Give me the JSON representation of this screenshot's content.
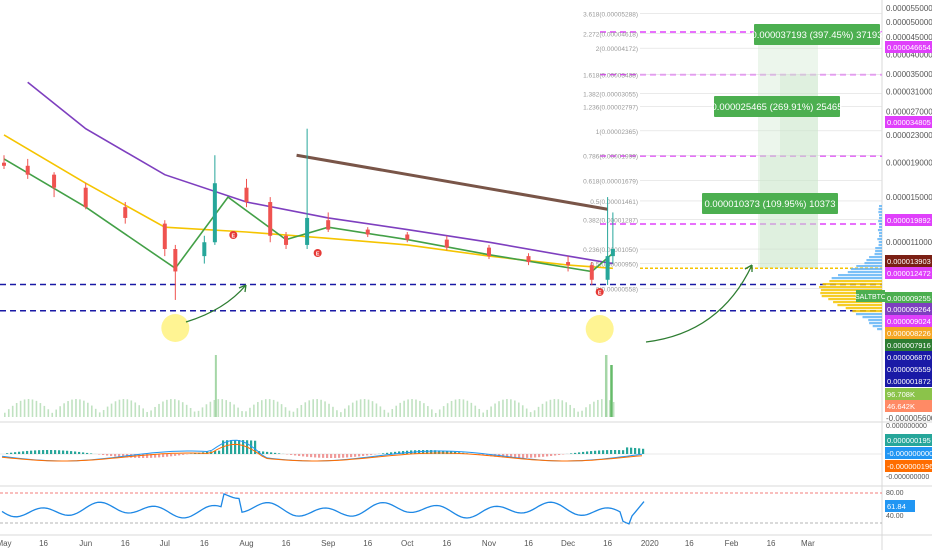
{
  "chart_data": [
    {
      "type": "candlestick",
      "symbol": "SALTBTC",
      "x_axis": {
        "tick_labels": [
          "May",
          "16",
          "Jun",
          "16",
          "Jul",
          "16",
          "Aug",
          "16",
          "Sep",
          "16",
          "Oct",
          "16",
          "Nov",
          "16",
          "Dec",
          "16",
          "2020",
          "16",
          "Feb",
          "16",
          "Mar"
        ],
        "range": [
          "2019-05-01",
          "2020-03-20"
        ]
      },
      "y_axis": {
        "scale": "log",
        "tick_labels": [
          "0.000055000",
          "0.000050000",
          "0.000045000",
          "0.000040000",
          "0.000035000",
          "0.000031000",
          "0.000027000",
          "0.000023000",
          "0.000019000",
          "0.000015000",
          "0.000011000",
          "0.000007000",
          "0.000003000",
          "-0.000005600"
        ]
      },
      "price_ohlc": [
        [
          "2019-05-01",
          1.9e-05,
          2e-05,
          1.82e-05,
          1.86e-05
        ],
        [
          "2019-05-10",
          1.86e-05,
          1.95e-05,
          1.7e-05,
          1.75e-05
        ],
        [
          "2019-05-20",
          1.75e-05,
          1.78e-05,
          1.5e-05,
          1.6e-05
        ],
        [
          "2019-06-01",
          1.6e-05,
          1.65e-05,
          1.38e-05,
          1.4e-05
        ],
        [
          "2019-06-16",
          1.4e-05,
          1.45e-05,
          1.25e-05,
          1.3e-05
        ],
        [
          "2019-07-01",
          1.25e-05,
          1.28e-05,
          1e-05,
          1.05e-05
        ],
        [
          "2019-07-05",
          1.05e-05,
          1.08e-05,
          7.4e-06,
          9e-06
        ],
        [
          "2019-07-16",
          1e-05,
          1.15e-05,
          9.5e-06,
          1.1e-05
        ],
        [
          "2019-07-20",
          1.1e-05,
          2e-05,
          1.08e-05,
          1.65e-05
        ],
        [
          "2019-08-01",
          1.6e-05,
          1.7e-05,
          1.4e-05,
          1.45e-05
        ],
        [
          "2019-08-10",
          1.45e-05,
          1.5e-05,
          1.1e-05,
          1.15e-05
        ],
        [
          "2019-08-16",
          1.15e-05,
          1.18e-05,
          1.05e-05,
          1.08e-05
        ],
        [
          "2019-08-24",
          1.08e-05,
          2.4e-05,
          1.05e-05,
          1.3e-05
        ],
        [
          "2019-09-01",
          1.28e-05,
          1.35e-05,
          1.18e-05,
          1.2e-05
        ],
        [
          "2019-09-16",
          1.2e-05,
          1.22e-05,
          1.14e-05,
          1.16e-05
        ],
        [
          "2019-10-01",
          1.16e-05,
          1.18e-05,
          1.1e-05,
          1.12e-05
        ],
        [
          "2019-10-16",
          1.12e-05,
          1.15e-05,
          1.04e-05,
          1.06e-05
        ],
        [
          "2019-11-01",
          1.06e-05,
          1.08e-05,
          9.8e-06,
          1e-05
        ],
        [
          "2019-11-16",
          1e-05,
          1.02e-05,
          9.4e-06,
          9.6e-06
        ],
        [
          "2019-12-01",
          9.6e-06,
          1e-05,
          9e-06,
          9.4e-06
        ],
        [
          "2019-12-10",
          9.4e-06,
          9.6e-06,
          8.2e-06,
          8.5e-06
        ],
        [
          "2019-12-16",
          8.5e-06,
          1.5e-05,
          8.2e-06,
          1e-05
        ],
        [
          "2019-12-18",
          1e-05,
          1.35e-05,
          9.5e-06,
          1.05e-05
        ]
      ],
      "price_tags": [
        {
          "text": "0.000046654",
          "color": "#e040fb"
        },
        {
          "text": "0.000034805",
          "color": "#e040fb"
        },
        {
          "text": "0.000019892",
          "color": "#e040fb"
        },
        {
          "text": "0.000013903",
          "color": "#7a1f14"
        },
        {
          "text": "0.000012472",
          "color": "#e040fb"
        },
        {
          "text": "SALTBTC",
          "color": "#4caf50"
        },
        {
          "text": "0.000009255",
          "color": "#4caf50"
        },
        {
          "text": "0.000009264",
          "color": "#7e3fbf"
        },
        {
          "text": "0.000009024",
          "color": "#e040fb"
        },
        {
          "text": "0.000008226",
          "color": "#f5a623"
        },
        {
          "text": "0.000007916",
          "color": "#2e7d32"
        },
        {
          "text": "0.000006870",
          "color": "#1a1aa6"
        },
        {
          "text": "0.000005559",
          "color": "#1a1aa6"
        },
        {
          "text": "0.000001872",
          "color": "#1a1aa6"
        },
        {
          "text": "96.708K",
          "color": "#8bc34a"
        },
        {
          "text": "46.642K",
          "color": "#ff8a65"
        }
      ],
      "target_labels": [
        {
          "text": "0.000037193 (397.45%) 37193"
        },
        {
          "text": "0.000025465 (269.91%) 25465"
        },
        {
          "text": "0.000010373 (109.95%) 10373"
        }
      ],
      "fib_labels": [
        "3.618(0.00005288)",
        "2.272(0.00004618)",
        "2(0.00004172)",
        "1.618(0.00003488)",
        "1.382(0.00003055)",
        "1.236(0.00002797)",
        "1(0.00002365)",
        "0.786(0.00001999)",
        "0.618(0.00001679)",
        "0.5(0.00001461)",
        "0.382(0.00001287)",
        "0.236(0.00001050)",
        "0.5(0.00000950)",
        "0(0.00000558)"
      ],
      "horizontal_levels": [
        {
          "value": 4.6654e-05,
          "color": "#e040fb",
          "style": "dashed"
        },
        {
          "value": 3.4805e-05,
          "color": "#e040fb",
          "style": "dashed"
        },
        {
          "value": 1.9892e-05,
          "color": "#e040fb",
          "style": "dashed"
        },
        {
          "value": 1.2472e-05,
          "color": "#e040fb",
          "style": "dashed"
        },
        {
          "value": 8.226e-06,
          "color": "#1a1aa6",
          "style": "dashed"
        },
        {
          "value": 6.87e-06,
          "color": "#1a1aa6",
          "style": "dashed"
        }
      ],
      "trendline": {
        "from": [
          "2019-08-20",
          2e-05
        ],
        "to": [
          "2019-12-16",
          1.38e-05
        ],
        "color": "#795548"
      },
      "moving_averages": [
        {
          "color": "#7e3fbf",
          "values": [
            [
              "2019-05-10",
              3.3e-05
            ],
            [
              "2019-06-01",
              2.4e-05
            ],
            [
              "2019-07-01",
              1.75e-05
            ],
            [
              "2019-08-01",
              1.45e-05
            ],
            [
              "2019-09-01",
              1.3e-05
            ],
            [
              "2019-10-01",
              1.2e-05
            ],
            [
              "2019-11-01",
              1.1e-05
            ],
            [
              "2019-12-01",
              1e-05
            ],
            [
              "2019-12-18",
              9.5e-06
            ]
          ]
        },
        {
          "color": "#f5c400",
          "values": [
            [
              "2019-05-01",
              2.3e-05
            ],
            [
              "2019-06-01",
              1.65e-05
            ],
            [
              "2019-07-01",
              1.22e-05
            ],
            [
              "2019-08-01",
              1.18e-05
            ],
            [
              "2019-09-01",
              1.13e-05
            ],
            [
              "2019-10-01",
              1.08e-05
            ],
            [
              "2019-11-01",
              1e-05
            ],
            [
              "2019-12-01",
              9.4e-06
            ],
            [
              "2019-12-18",
              9.2e-06
            ]
          ]
        },
        {
          "color": "#43a047",
          "values": [
            [
              "2019-05-01",
              1.95e-05
            ],
            [
              "2019-06-01",
              1.4e-05
            ],
            [
              "2019-07-05",
              9.2e-06
            ],
            [
              "2019-07-25",
              1.5e-05
            ],
            [
              "2019-08-16",
              1.12e-05
            ],
            [
              "2019-09-01",
              1.22e-05
            ],
            [
              "2019-10-01",
              1.12e-05
            ],
            [
              "2019-11-01",
              1.01e-05
            ],
            [
              "2019-12-10",
              9e-06
            ],
            [
              "2019-12-18",
              1.02e-05
            ]
          ]
        }
      ],
      "event_markers": [
        "E",
        "E",
        "E"
      ]
    },
    {
      "type": "line",
      "name": "MACD",
      "value_tags": [
        {
          "text": "0.000000195",
          "color": "#26a69a"
        },
        {
          "text": "-0.000000000",
          "color": "#2196f3"
        },
        {
          "text": "-0.000000196",
          "color": "#ff6d00"
        }
      ],
      "y_tick_labels": [
        "0.000000000",
        "-0.000000000"
      ]
    },
    {
      "type": "line",
      "name": "RSI",
      "y_tick_labels": [
        "80.00",
        "40.00"
      ],
      "value_tags": [
        {
          "text": "61.84",
          "color": "#2196f3"
        }
      ]
    }
  ]
}
